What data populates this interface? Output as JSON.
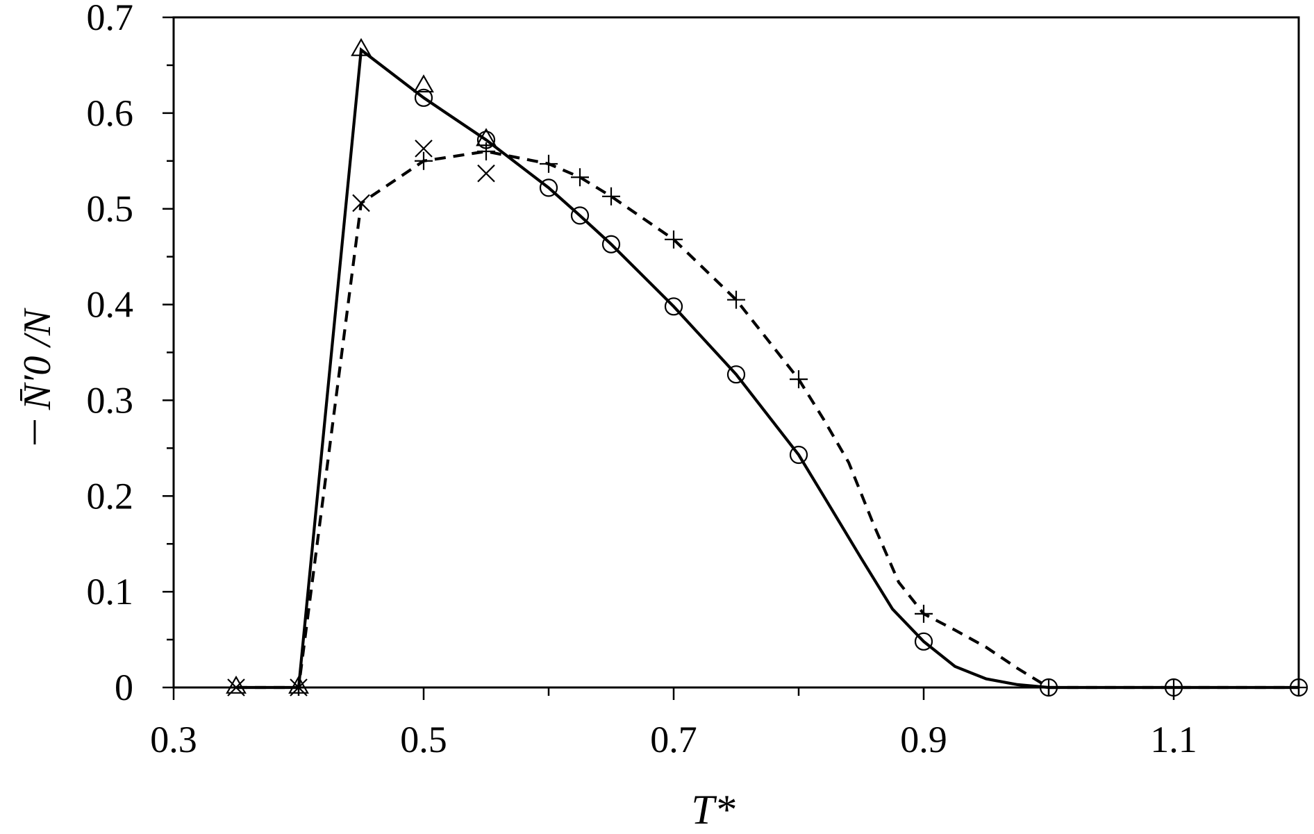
{
  "chart_data": {
    "type": "scatter",
    "xlabel": "T*",
    "ylabel": "N̄′0 /N",
    "xlim": [
      0.3,
      1.2
    ],
    "ylim": [
      0,
      0.7
    ],
    "x_ticks": [
      "0.3",
      "0.5",
      "0.7",
      "0.9",
      "1.1"
    ],
    "x_tick_values": [
      0.3,
      0.5,
      0.7,
      0.9,
      1.1
    ],
    "y_ticks": [
      "0",
      "0.1",
      "0.2",
      "0.3",
      "0.4",
      "0.5",
      "0.6",
      "0.7"
    ],
    "y_tick_values": [
      0,
      0.1,
      0.2,
      0.3,
      0.4,
      0.5,
      0.6,
      0.7
    ],
    "grid": false,
    "legend": "none",
    "series": [
      {
        "marker": "triangle",
        "points": [
          [
            0.35,
            0.0
          ],
          [
            0.4,
            0.0
          ],
          [
            0.45,
            0.666
          ],
          [
            0.5,
            0.628
          ],
          [
            0.55,
            0.572
          ]
        ]
      },
      {
        "marker": "circle",
        "points": [
          [
            0.5,
            0.616
          ],
          [
            0.55,
            0.572
          ],
          [
            0.6,
            0.522
          ],
          [
            0.625,
            0.493
          ],
          [
            0.65,
            0.463
          ],
          [
            0.7,
            0.398
          ],
          [
            0.75,
            0.327
          ],
          [
            0.8,
            0.243
          ],
          [
            0.9,
            0.048
          ],
          [
            1.0,
            0.0
          ],
          [
            1.1,
            0.0
          ],
          [
            1.2,
            0.0
          ]
        ]
      },
      {
        "marker": "x",
        "points": [
          [
            0.35,
            0.0
          ],
          [
            0.4,
            0.0
          ],
          [
            0.45,
            0.506
          ],
          [
            0.5,
            0.563
          ],
          [
            0.55,
            0.537
          ]
        ]
      },
      {
        "marker": "plus",
        "points": [
          [
            0.5,
            0.55
          ],
          [
            0.55,
            0.56
          ],
          [
            0.6,
            0.547
          ],
          [
            0.625,
            0.533
          ],
          [
            0.65,
            0.513
          ],
          [
            0.7,
            0.468
          ],
          [
            0.75,
            0.405
          ],
          [
            0.8,
            0.322
          ],
          [
            0.9,
            0.077
          ],
          [
            1.0,
            0.0
          ],
          [
            1.1,
            0.0
          ],
          [
            1.2,
            0.0
          ]
        ]
      }
    ],
    "lines": [
      {
        "style": "solid",
        "points": [
          [
            0.35,
            0.0
          ],
          [
            0.4,
            0.0
          ],
          [
            0.45,
            0.666
          ],
          [
            0.5,
            0.616
          ],
          [
            0.55,
            0.572
          ],
          [
            0.6,
            0.522
          ],
          [
            0.625,
            0.493
          ],
          [
            0.65,
            0.463
          ],
          [
            0.7,
            0.398
          ],
          [
            0.75,
            0.327
          ],
          [
            0.8,
            0.243
          ],
          [
            0.82,
            0.2
          ],
          [
            0.85,
            0.135
          ],
          [
            0.875,
            0.082
          ],
          [
            0.9,
            0.048
          ],
          [
            0.925,
            0.022
          ],
          [
            0.95,
            0.009
          ],
          [
            0.975,
            0.003
          ],
          [
            1.0,
            0.0
          ],
          [
            1.1,
            0.0
          ],
          [
            1.2,
            0.0
          ]
        ]
      },
      {
        "style": "dashed",
        "points": [
          [
            0.35,
            0.0
          ],
          [
            0.4,
            0.0
          ],
          [
            0.45,
            0.506
          ],
          [
            0.5,
            0.55
          ],
          [
            0.55,
            0.56
          ],
          [
            0.6,
            0.547
          ],
          [
            0.625,
            0.533
          ],
          [
            0.65,
            0.513
          ],
          [
            0.7,
            0.468
          ],
          [
            0.75,
            0.405
          ],
          [
            0.8,
            0.322
          ],
          [
            0.82,
            0.28
          ],
          [
            0.84,
            0.235
          ],
          [
            0.86,
            0.17
          ],
          [
            0.88,
            0.11
          ],
          [
            0.9,
            0.077
          ],
          [
            0.925,
            0.06
          ],
          [
            0.95,
            0.042
          ],
          [
            0.975,
            0.02
          ],
          [
            1.0,
            0.0
          ],
          [
            1.1,
            0.0
          ],
          [
            1.2,
            0.0
          ]
        ]
      }
    ]
  }
}
